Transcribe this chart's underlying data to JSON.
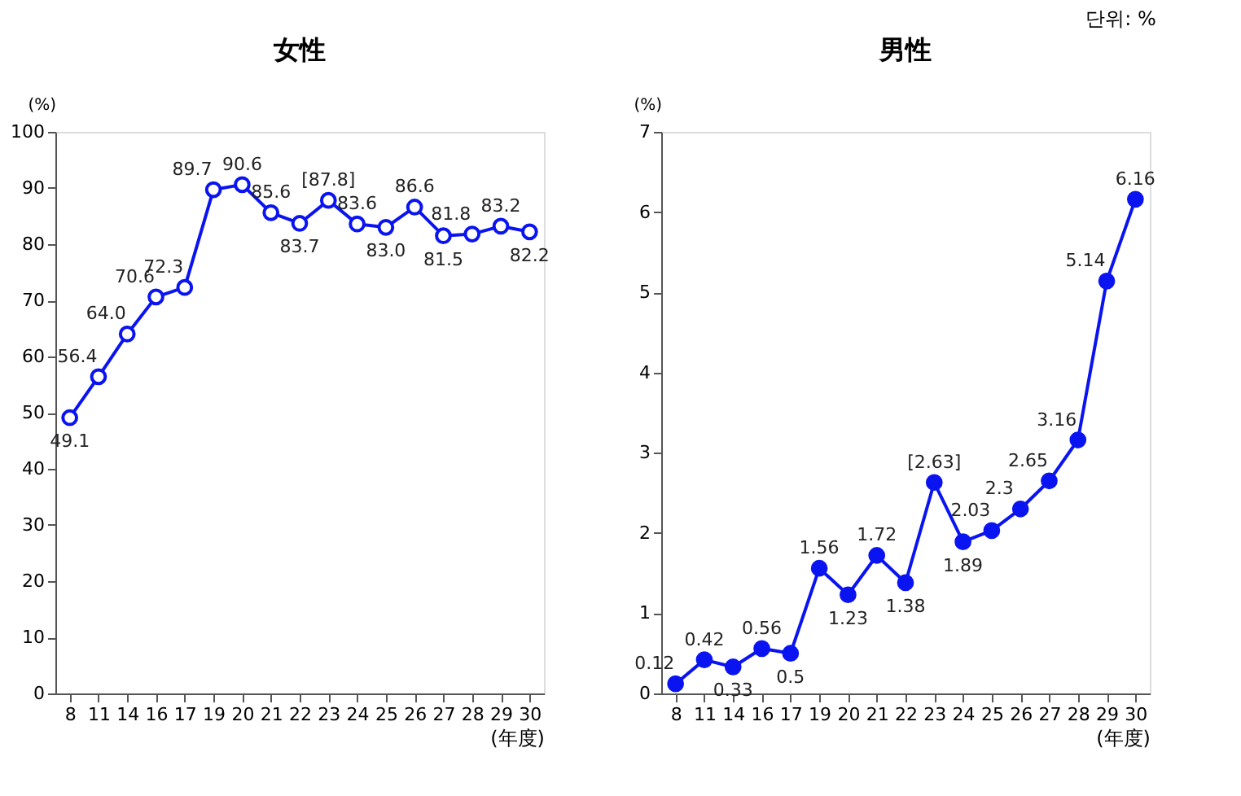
{
  "chart_data": [
    {
      "type": "line",
      "title": "女性",
      "ylabel": "(%)",
      "xlabel": "(年度)",
      "categories": [
        "8",
        "11",
        "14",
        "16",
        "17",
        "19",
        "20",
        "21",
        "22",
        "23",
        "24",
        "25",
        "26",
        "27",
        "28",
        "29",
        "30"
      ],
      "series": [
        {
          "color": "#0a14f0",
          "values": [
            49.1,
            56.4,
            64.0,
            70.6,
            72.3,
            89.7,
            90.6,
            85.6,
            83.7,
            87.8,
            83.6,
            83.0,
            86.6,
            81.5,
            81.8,
            83.2,
            82.2
          ],
          "value_labels": [
            "49.1",
            "56.4",
            "64.0",
            "70.6",
            "72.3",
            "89.7",
            "90.6",
            "85.6",
            "83.7",
            "[87.8]",
            "83.6",
            "83.0",
            "86.6",
            "81.5",
            "81.8",
            "83.2",
            "82.2"
          ]
        }
      ],
      "ylim": [
        0,
        100
      ],
      "yticks": [
        0,
        10,
        20,
        30,
        40,
        50,
        60,
        70,
        80,
        90,
        100
      ],
      "grid": false,
      "marker": "circle",
      "line_style": "solid"
    },
    {
      "type": "line",
      "title": "男性",
      "ylabel": "(%)",
      "xlabel": "(年度)",
      "annotations": [
        "단위: %"
      ],
      "categories": [
        "8",
        "11",
        "14",
        "16",
        "17",
        "19",
        "20",
        "21",
        "22",
        "23",
        "24",
        "25",
        "26",
        "27",
        "28",
        "29",
        "30"
      ],
      "series": [
        {
          "color": "#0a14f0",
          "values": [
            0.12,
            0.42,
            0.33,
            0.56,
            0.5,
            1.56,
            1.23,
            1.72,
            1.38,
            2.63,
            1.89,
            2.03,
            2.3,
            2.65,
            3.16,
            5.14,
            6.16
          ],
          "value_labels": [
            "0.12",
            "0.42",
            "0.33",
            "0.56",
            "0.5",
            "1.56",
            "1.23",
            "1.72",
            "1.38",
            "[2.63]",
            "1.89",
            "2.03",
            "2.3",
            "2.65",
            "3.16",
            "5.14",
            "6.16"
          ]
        }
      ],
      "ylim": [
        0,
        7
      ],
      "yticks": [
        0,
        1,
        2,
        3,
        4,
        5,
        6,
        7
      ],
      "grid": false,
      "marker": "circle",
      "line_style": "solid"
    }
  ]
}
